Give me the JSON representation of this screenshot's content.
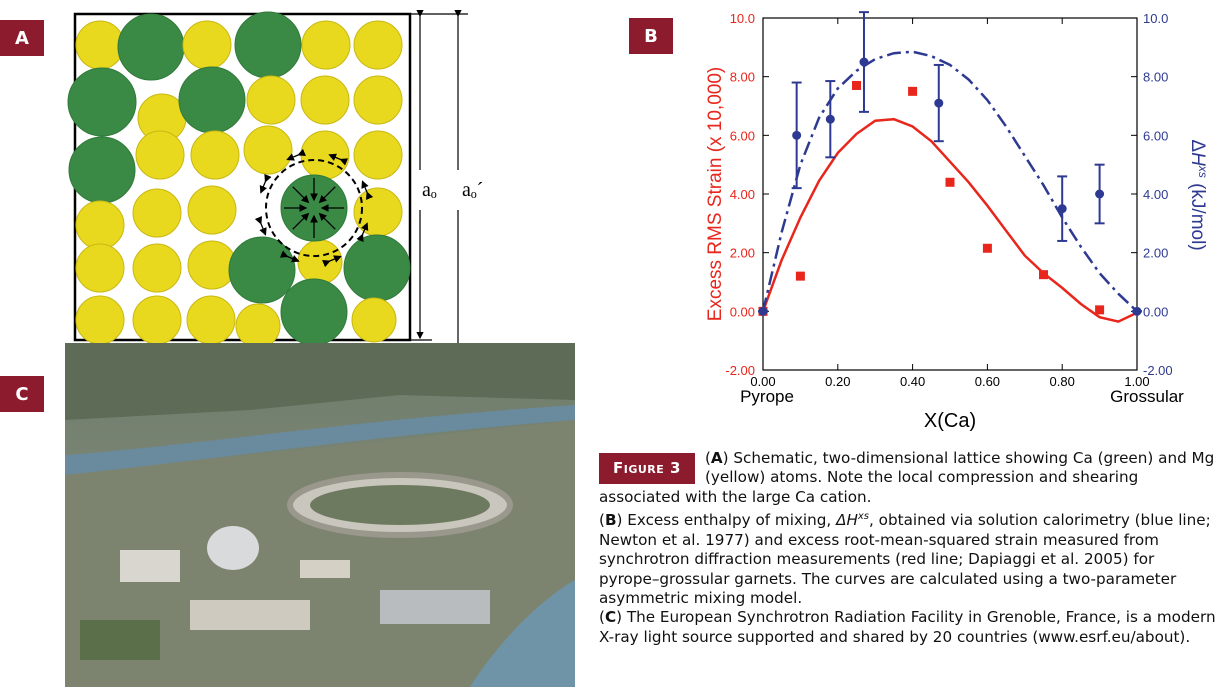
{
  "panels": {
    "a": {
      "label": "A",
      "dim_inner": "aₒ",
      "dim_outer": "aₒ´"
    },
    "b": {
      "label": "B"
    },
    "c": {
      "label": "C"
    }
  },
  "chart_data": {
    "type": "line",
    "xlabel": "X(Ca)",
    "x_end_labels": [
      "Pyrope",
      "Grossular"
    ],
    "ylabel": "Excess RMS Strain (x 10,000)",
    "y2label": [
      "Δ",
      "H",
      "xs",
      " (kJ/mol)"
    ],
    "xlim": [
      0,
      1
    ],
    "ylim": [
      -2,
      10
    ],
    "y2lim": [
      -2,
      10
    ],
    "xticks": [
      {
        "value": 0,
        "label": "0.00"
      },
      {
        "value": 0.2,
        "label": "0.20"
      },
      {
        "value": 0.4,
        "label": "0.40"
      },
      {
        "value": 0.6,
        "label": "0.60"
      },
      {
        "value": 0.8,
        "label": "0.80"
      },
      {
        "value": 1,
        "label": "1.00"
      }
    ],
    "yticks": [
      {
        "value": -2,
        "label": "-2.00"
      },
      {
        "value": 0,
        "label": "0.00"
      },
      {
        "value": 2,
        "label": "2.00"
      },
      {
        "value": 4,
        "label": "4.00"
      },
      {
        "value": 6,
        "label": "6.00"
      },
      {
        "value": 8,
        "label": "8.00"
      },
      {
        "value": 10,
        "label": "10.0"
      }
    ],
    "y2ticks": [
      {
        "value": -2,
        "label": "-2.00"
      },
      {
        "value": 0,
        "label": "0.00"
      },
      {
        "value": 2,
        "label": "2.00"
      },
      {
        "value": 4,
        "label": "4.00"
      },
      {
        "value": 6,
        "label": "6.00"
      },
      {
        "value": 8,
        "label": "8.00"
      },
      {
        "value": 10,
        "label": "10.0"
      }
    ],
    "ylabel_color": "#e8261c",
    "y2label_color": "#2e3a92",
    "series": [
      {
        "color": "#e8261c",
        "style": "line",
        "axis": "y",
        "x": [
          0,
          0.05,
          0.1,
          0.15,
          0.2,
          0.25,
          0.3,
          0.35,
          0.4,
          0.45,
          0.5,
          0.55,
          0.6,
          0.65,
          0.7,
          0.75,
          0.8,
          0.85,
          0.9,
          0.95,
          1
        ],
        "values": [
          0,
          1.75,
          3.2,
          4.45,
          5.4,
          6.05,
          6.5,
          6.55,
          6.3,
          5.8,
          5.1,
          4.4,
          3.6,
          2.75,
          1.9,
          1.3,
          0.8,
          0.25,
          -0.2,
          -0.35,
          -0.05
        ]
      },
      {
        "color": "#2e3a92",
        "style": "dash-dot",
        "axis": "y2",
        "x": [
          0,
          0.05,
          0.1,
          0.15,
          0.2,
          0.25,
          0.3,
          0.35,
          0.4,
          0.45,
          0.5,
          0.55,
          0.6,
          0.65,
          0.7,
          0.75,
          0.8,
          0.85,
          0.9,
          0.95,
          1
        ],
        "values": [
          0,
          2.7,
          5.0,
          6.6,
          7.6,
          8.2,
          8.6,
          8.8,
          8.85,
          8.7,
          8.4,
          7.9,
          7.2,
          6.3,
          5.3,
          4.3,
          3.2,
          2.2,
          1.3,
          0.6,
          0
        ]
      },
      {
        "color": "#e8261c",
        "style": "markers",
        "marker": "square",
        "axis": "y",
        "x": [
          0,
          0.1,
          0.25,
          0.4,
          0.5,
          0.6,
          0.75,
          0.9
        ],
        "values": [
          0,
          1.2,
          7.7,
          7.5,
          4.4,
          2.15,
          1.25,
          0.05
        ]
      },
      {
        "color": "#2e3a92",
        "style": "markers",
        "marker": "circle",
        "axis": "y2",
        "x": [
          0,
          0.09,
          0.18,
          0.27,
          0.47,
          0.8,
          0.9,
          1
        ],
        "values": [
          0,
          6.0,
          6.55,
          8.5,
          7.1,
          3.5,
          4.0,
          0
        ],
        "errors": [
          0,
          1.8,
          1.3,
          1.7,
          1.3,
          1.1,
          1.0,
          0
        ]
      }
    ]
  },
  "caption": {
    "tag": "Figure 3",
    "paragraphs": [
      [
        "(",
        "A",
        ") Schematic, two-dimensional lattice showing Ca (green) and Mg (yellow) atoms. Note the local compression and shearing associated with the large Ca cation."
      ],
      [
        "(",
        "B",
        ") Excess enthalpy of mixing, ",
        "ΔH",
        "xs",
        ", obtained via solution calorimetry (blue line; Newton et al. 1977) and excess root-mean-squared strain measured from synchrotron diffraction measurements (red line; Dapiaggi et al. 2005) for pyrope–grossular garnets. The curves are calculated using a two-parameter asymmetric mixing model."
      ],
      [
        "(",
        "C",
        ") The European Synchrotron Radiation Facility in Grenoble, France, is a modern X-ray light source supported and shared by 20 countries (www.esrf.eu/about)."
      ]
    ]
  }
}
